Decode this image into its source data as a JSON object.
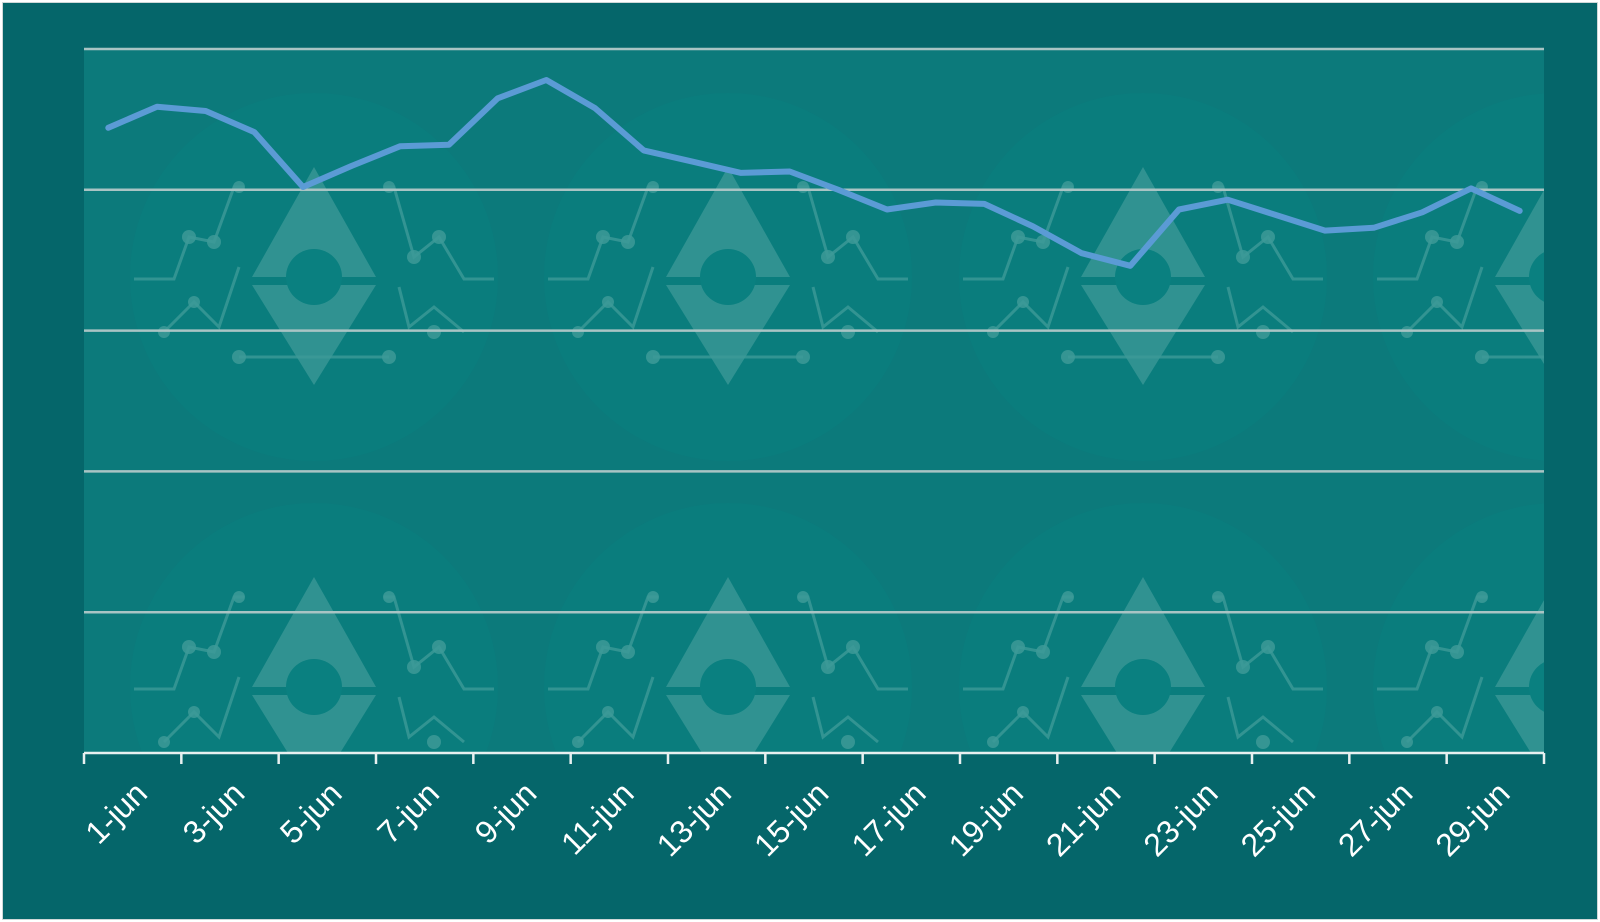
{
  "chart_data": {
    "type": "line",
    "title": "",
    "xlabel": "",
    "ylabel": "",
    "x": [
      "1-jun",
      "2-jun",
      "3-jun",
      "4-jun",
      "5-jun",
      "6-jun",
      "7-jun",
      "8-jun",
      "9-jun",
      "10-jun",
      "11-jun",
      "12-jun",
      "13-jun",
      "14-jun",
      "15-jun",
      "16-jun",
      "17-jun",
      "18-jun",
      "19-jun",
      "20-jun",
      "21-jun",
      "22-jun",
      "23-jun",
      "24-jun",
      "25-jun",
      "26-jun",
      "27-jun",
      "28-jun",
      "29-jun",
      "30-jun"
    ],
    "tick_labels": [
      "1-jun",
      "3-jun",
      "5-jun",
      "7-jun",
      "9-jun",
      "11-jun",
      "13-jun",
      "15-jun",
      "17-jun",
      "19-jun",
      "21-jun",
      "23-jun",
      "25-jun",
      "27-jun",
      "29-jun"
    ],
    "series": [
      {
        "values": [
          4.44,
          4.59,
          4.56,
          4.41,
          4.02,
          4.17,
          4.31,
          4.32,
          4.65,
          4.78,
          4.58,
          4.28,
          4.2,
          4.12,
          4.13,
          4.0,
          3.86,
          3.91,
          3.9,
          3.74,
          3.55,
          3.46,
          3.86,
          3.93,
          3.82,
          3.71,
          3.73,
          3.84,
          4.01,
          3.85
        ]
      }
    ],
    "ylim": [
      0,
      5
    ],
    "y_gridlines": [
      1,
      2,
      3,
      4,
      5
    ],
    "grid": true,
    "legend": "none"
  },
  "colors": {
    "background": "#05666a",
    "plot_area": "#0c7a7b",
    "line": "#5b9bd5",
    "gridline": "#a9c4c4",
    "watermark": "#3d9a98"
  },
  "icons": {
    "watermark": "gear-node-diamond-watermark-icon"
  }
}
